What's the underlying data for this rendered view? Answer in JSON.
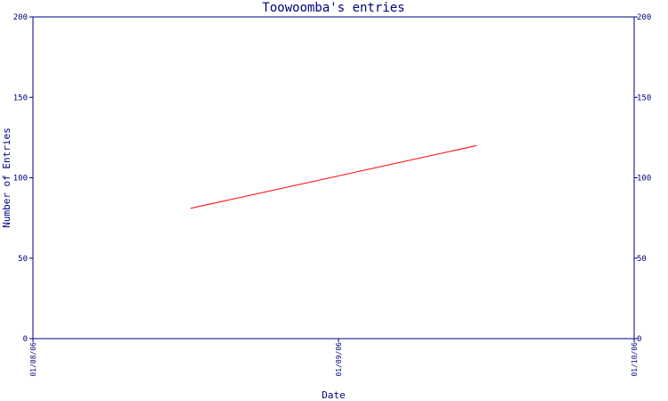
{
  "chart_data": {
    "type": "line",
    "title": "Toowoomba's entries",
    "xlabel": "Date",
    "ylabel": "Number of Entries",
    "ylim": [
      0,
      200
    ],
    "yticks": [
      0,
      50,
      100,
      150,
      200
    ],
    "xticks": [
      "01/08/06",
      "01/09/06",
      "01/10/06"
    ],
    "xlim": [
      "01/08/06",
      "01/10/06"
    ],
    "series": [
      {
        "points": [
          {
            "x": "2006-08-17",
            "y": 81
          },
          {
            "x": "2006-09-15",
            "y": 120
          }
        ]
      }
    ],
    "grid": false,
    "right_axis": true,
    "colors": {
      "axis": "#000080",
      "text": "#000080",
      "line": "#ff0000",
      "background": "#ffffff"
    }
  }
}
